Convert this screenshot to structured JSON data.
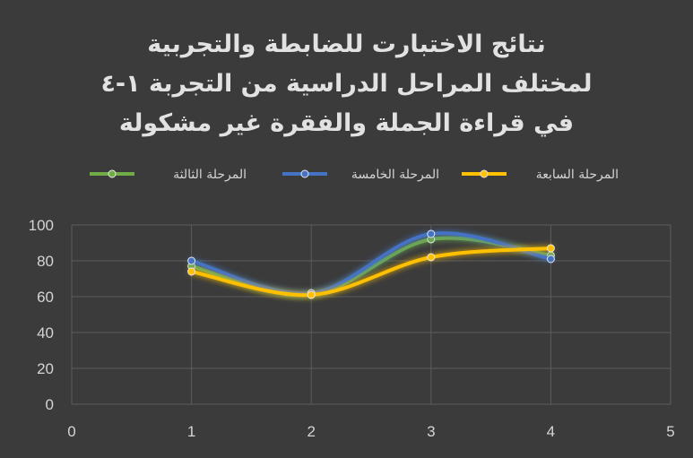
{
  "chart_data": {
    "type": "line",
    "title_lines": [
      "نتائج الاختبارت للضابطة والتجربية",
      "لمختلف المراحل الدراسية من التجربة ١-٤",
      "في قراءة الجملة  والفقرة غير مشكولة"
    ],
    "x": [
      1,
      2,
      3,
      4
    ],
    "series": [
      {
        "name": "المرحلة الثالثة",
        "values": [
          77,
          61,
          92,
          83
        ],
        "color": "#70ad47"
      },
      {
        "name": "المرحلة الخامسة",
        "values": [
          80,
          62,
          95,
          81
        ],
        "color": "#4472c4"
      },
      {
        "name": "المرحلة السابعة",
        "values": [
          74,
          61,
          82,
          87
        ],
        "color": "#ffc000"
      }
    ],
    "xlim": [
      0,
      5
    ],
    "ylim": [
      0,
      100
    ],
    "x_ticks": [
      0,
      1,
      2,
      3,
      4,
      5
    ],
    "y_ticks": [
      0,
      20,
      40,
      60,
      80,
      100
    ],
    "grid": true,
    "legend": "top"
  }
}
